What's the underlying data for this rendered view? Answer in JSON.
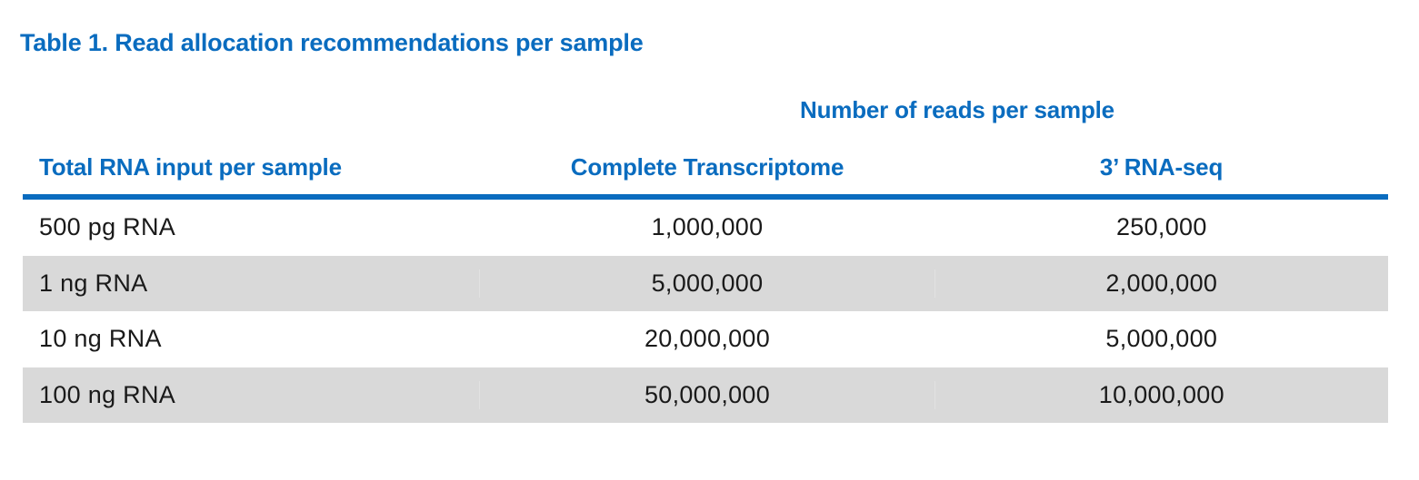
{
  "caption": "Table 1. Read allocation recommendations per sample",
  "table": {
    "group_header": "Number of reads per sample",
    "headers": [
      "Total RNA input per sample",
      "Complete Transcriptome",
      "3’ RNA-seq"
    ],
    "rows": [
      [
        "500 pg RNA",
        "1,000,000",
        "250,000"
      ],
      [
        "1 ng RNA",
        "5,000,000",
        "2,000,000"
      ],
      [
        "10 ng RNA",
        "20,000,000",
        "5,000,000"
      ],
      [
        "100 ng RNA",
        "50,000,000",
        "10,000,000"
      ]
    ]
  },
  "colors": {
    "accent": "#0a6cbf",
    "row_shade": "#d9d9d9",
    "text": "#1a1a1a"
  }
}
